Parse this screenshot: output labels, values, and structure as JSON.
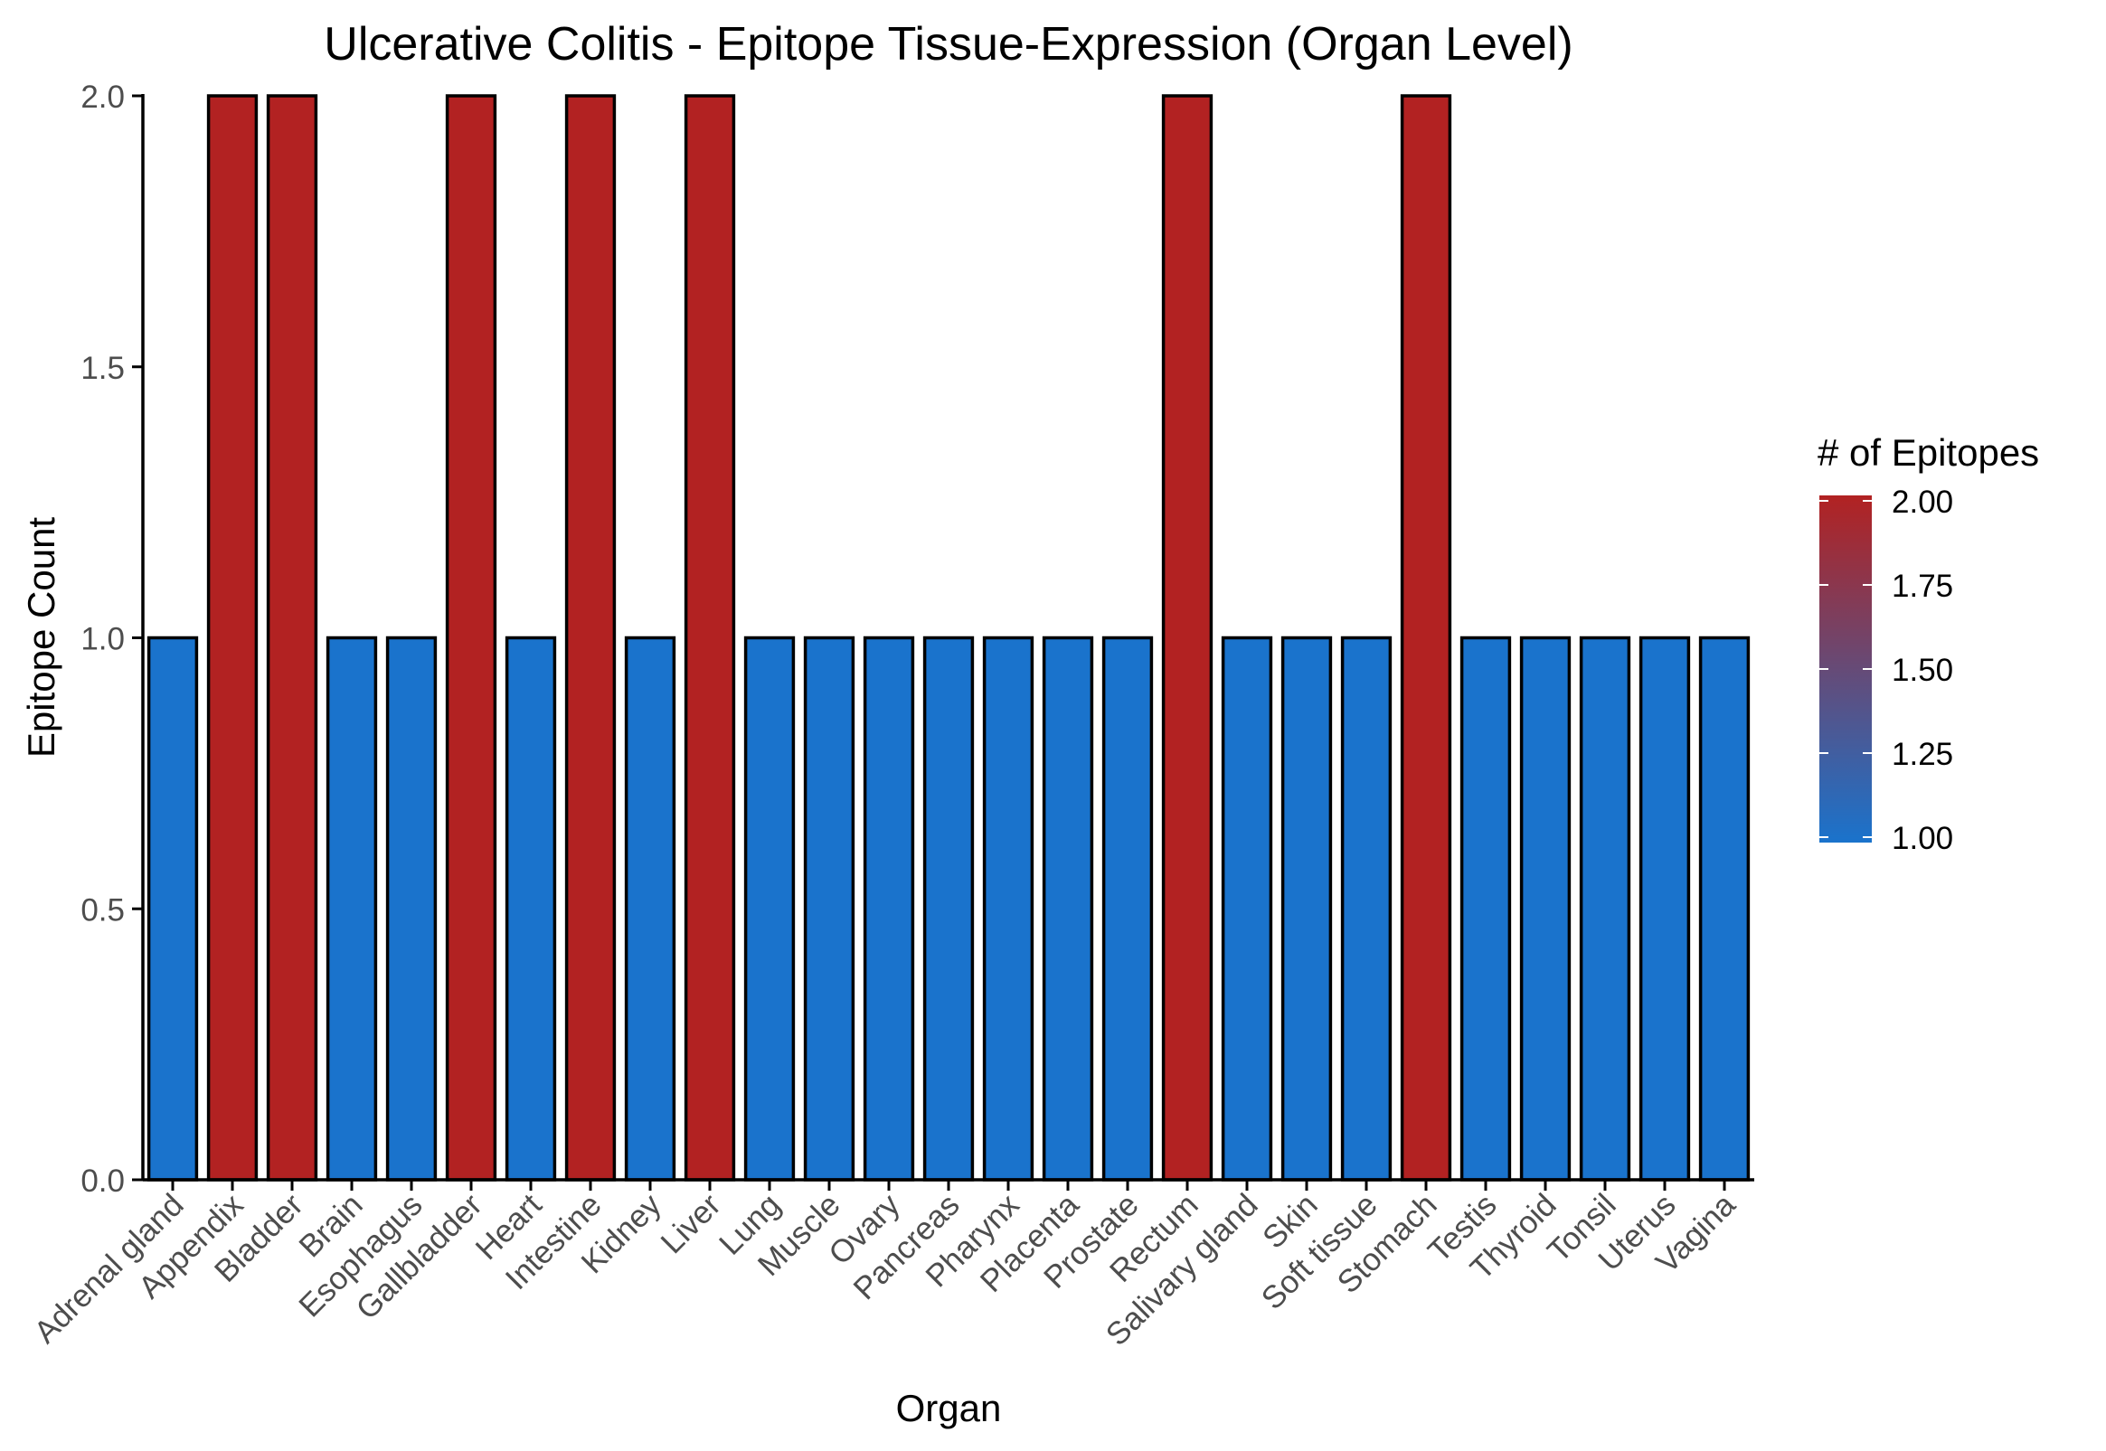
{
  "chart_data": {
    "type": "bar",
    "title": "Ulcerative Colitis - Epitope Tissue-Expression (Organ Level)",
    "xlabel": "Organ",
    "ylabel": "Epitope Count",
    "ylim": [
      0,
      2
    ],
    "yticks": [
      "0.0",
      "0.5",
      "1.0",
      "1.5",
      "2.0"
    ],
    "ytick_values": [
      0,
      0.5,
      1.0,
      1.5,
      2.0
    ],
    "categories": [
      "Adrenal gland",
      "Appendix",
      "Bladder",
      "Brain",
      "Esophagus",
      "Gallbladder",
      "Heart",
      "Intestine",
      "Kidney",
      "Liver",
      "Lung",
      "Muscle",
      "Ovary",
      "Pancreas",
      "Pharynx",
      "Placenta",
      "Prostate",
      "Rectum",
      "Salivary gland",
      "Skin",
      "Soft tissue",
      "Stomach",
      "Testis",
      "Thyroid",
      "Tonsil",
      "Uterus",
      "Vagina"
    ],
    "values": [
      1,
      2,
      2,
      1,
      1,
      2,
      1,
      2,
      1,
      2,
      1,
      1,
      1,
      1,
      1,
      1,
      1,
      2,
      1,
      1,
      1,
      2,
      1,
      1,
      1,
      1,
      1
    ],
    "grid": false,
    "legend": {
      "title": "# of Epitopes",
      "type": "colorbar",
      "placement": "right",
      "range": [
        1,
        2
      ],
      "labels": [
        "2.00",
        "1.75",
        "1.50",
        "1.25",
        "1.00"
      ],
      "label_values": [
        2.0,
        1.75,
        1.5,
        1.25,
        1.0
      ]
    },
    "colors": {
      "low": "#1a73cc",
      "high": "#b22222",
      "bar_outline": "#000000",
      "axis": "#000000",
      "tick_label": "#4d4d4d"
    }
  }
}
